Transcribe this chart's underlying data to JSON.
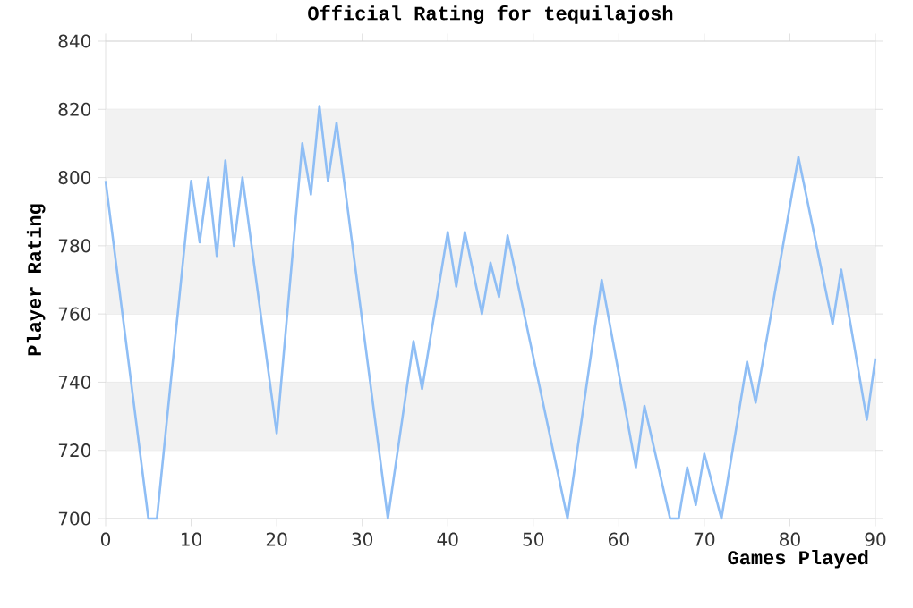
{
  "chart_data": {
    "type": "line",
    "title": "Official Rating for tequilajosh",
    "xlabel": "Games Played",
    "ylabel": "Player Rating",
    "xlim": [
      0,
      90
    ],
    "xticks": [
      0,
      10,
      20,
      30,
      40,
      50,
      60,
      70,
      80,
      90
    ],
    "ylim": [
      700,
      840
    ],
    "yticks": [
      700,
      720,
      740,
      760,
      780,
      800,
      820,
      840
    ],
    "grid": "y",
    "series": [
      {
        "color": "#8fbef5",
        "x": [
          0,
          5,
          6,
          10,
          11,
          12,
          13,
          14,
          15,
          16,
          20,
          23,
          24,
          25,
          26,
          27,
          33,
          36,
          37,
          40,
          41,
          42,
          44,
          45,
          46,
          47,
          54,
          58,
          62,
          63,
          66,
          67,
          68,
          69,
          70,
          72,
          75,
          76,
          81,
          85,
          86,
          89,
          90
        ],
        "values": [
          799,
          700,
          700,
          799,
          781,
          800,
          777,
          805,
          780,
          800,
          725,
          810,
          795,
          821,
          799,
          816,
          700,
          752,
          738,
          784,
          768,
          784,
          760,
          775,
          765,
          783,
          700,
          770,
          715,
          733,
          700,
          700,
          715,
          704,
          719,
          700,
          746,
          734,
          806,
          757,
          773,
          729,
          747
        ]
      }
    ]
  }
}
